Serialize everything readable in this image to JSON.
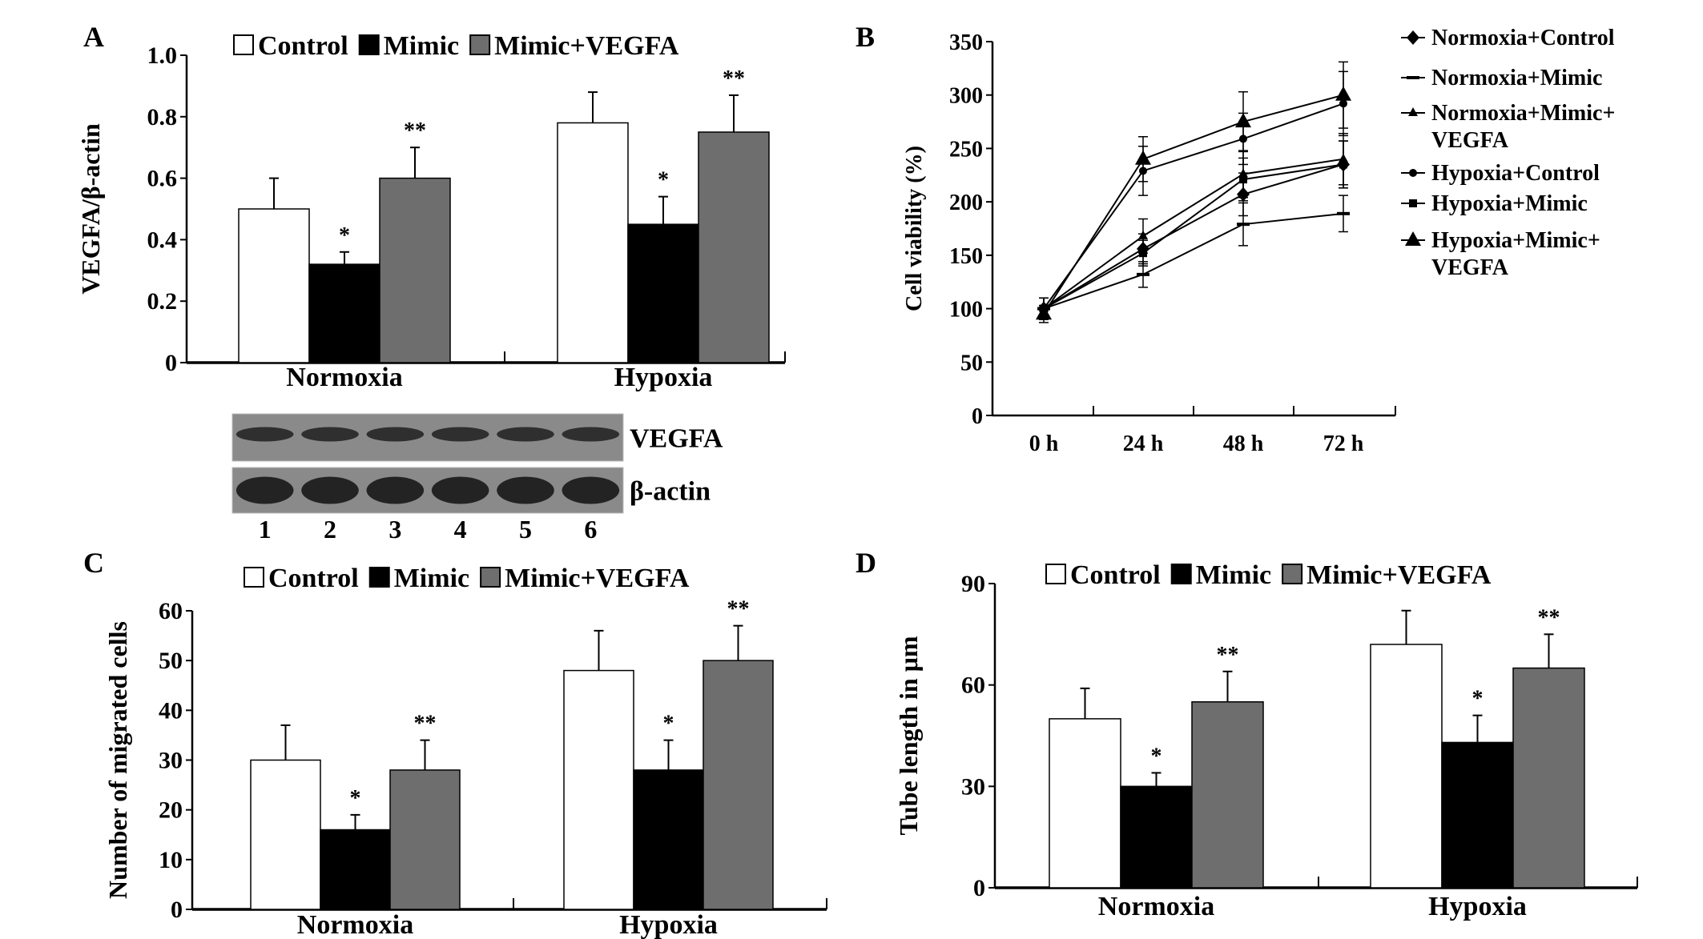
{
  "colors": {
    "control": "#ffffff",
    "mimic": "#000000",
    "mimic_vegfa": "#6e6e6e",
    "blot_bg": "#8a8a8a",
    "blot_band": "#1e1e1e"
  },
  "chart_data": [
    {
      "panel": "A",
      "type": "bar",
      "ylabel": "VEGFA/β-actin",
      "ylim": [
        0,
        1.0
      ],
      "yticks": [
        "0",
        "0.2",
        "0.4",
        "0.6",
        "0.8",
        "1.0"
      ],
      "categories": [
        "Normoxia",
        "Hypoxia"
      ],
      "legend_position": "top",
      "series": [
        {
          "name": "Control",
          "values": [
            0.5,
            0.78
          ],
          "errors": [
            0.1,
            0.1
          ],
          "sig": [
            "",
            ""
          ]
        },
        {
          "name": "Mimic",
          "values": [
            0.32,
            0.45
          ],
          "errors": [
            0.04,
            0.09
          ],
          "sig": [
            "*",
            "*"
          ]
        },
        {
          "name": "Mimic+VEGFA",
          "values": [
            0.6,
            0.75
          ],
          "errors": [
            0.1,
            0.12
          ],
          "sig": [
            "**",
            "**"
          ]
        }
      ],
      "blot": {
        "rows": [
          "VEGFA",
          "β-actin"
        ],
        "lanes": [
          "1",
          "2",
          "3",
          "4",
          "5",
          "6"
        ]
      }
    },
    {
      "panel": "B",
      "type": "line",
      "ylabel": "Cell viability (%)",
      "ylim": [
        0,
        350
      ],
      "yticks": [
        "0",
        "50",
        "100",
        "150",
        "200",
        "250",
        "300",
        "350"
      ],
      "categories": [
        "0 h",
        "24 h",
        "48 h",
        "72 h"
      ],
      "legend_position": "right",
      "series": [
        {
          "name": "Normoxia+Control",
          "marker": "diamond",
          "values": [
            100,
            156,
            207,
            235
          ],
          "errors": [
            10,
            14,
            20,
            22
          ]
        },
        {
          "name": "Normoxia+Mimic",
          "marker": "dash",
          "values": [
            100,
            132,
            179,
            189
          ],
          "errors": [
            10,
            12,
            20,
            17
          ]
        },
        {
          "name": "Normoxia+Mimic+VEGFA",
          "marker": "small-triangle",
          "values": [
            100,
            168,
            226,
            240
          ],
          "errors": [
            10,
            16,
            22,
            24
          ]
        },
        {
          "name": "Hypoxia+Control",
          "marker": "circle",
          "values": [
            100,
            229,
            259,
            292
          ],
          "errors": [
            10,
            23,
            24,
            30
          ]
        },
        {
          "name": "Hypoxia+Mimic",
          "marker": "square",
          "values": [
            100,
            152,
            221,
            235
          ],
          "errors": [
            10,
            12,
            20,
            22
          ]
        },
        {
          "name": "Hypoxia+Mimic+VEGFA",
          "marker": "triangle",
          "values": [
            95,
            240,
            275,
            300
          ],
          "errors": [
            8,
            21,
            28,
            31
          ]
        }
      ]
    },
    {
      "panel": "C",
      "type": "bar",
      "ylabel": "Number of migrated cells",
      "ylim": [
        0,
        60
      ],
      "yticks": [
        "0",
        "10",
        "20",
        "30",
        "40",
        "50",
        "60"
      ],
      "categories": [
        "Normoxia",
        "Hypoxia"
      ],
      "legend_position": "top",
      "series": [
        {
          "name": "Control",
          "values": [
            30,
            48
          ],
          "errors": [
            7,
            8
          ],
          "sig": [
            "",
            ""
          ]
        },
        {
          "name": "Mimic",
          "values": [
            16,
            28
          ],
          "errors": [
            3,
            6
          ],
          "sig": [
            "*",
            "*"
          ]
        },
        {
          "name": "Mimic+VEGFA",
          "values": [
            28,
            50
          ],
          "errors": [
            6,
            7
          ],
          "sig": [
            "**",
            "**"
          ]
        }
      ]
    },
    {
      "panel": "D",
      "type": "bar",
      "ylabel": "Tube length in μm",
      "ylim": [
        0,
        90
      ],
      "yticks": [
        "0",
        "30",
        "60",
        "90"
      ],
      "categories": [
        "Normoxia",
        "Hypoxia"
      ],
      "legend_position": "top",
      "series": [
        {
          "name": "Control",
          "values": [
            50,
            72
          ],
          "errors": [
            9,
            10
          ],
          "sig": [
            "",
            ""
          ]
        },
        {
          "name": "Mimic",
          "values": [
            30,
            43
          ],
          "errors": [
            4,
            8
          ],
          "sig": [
            "*",
            "*"
          ]
        },
        {
          "name": "Mimic+VEGFA",
          "values": [
            55,
            65
          ],
          "errors": [
            9,
            10
          ],
          "sig": [
            "**",
            "**"
          ]
        }
      ]
    }
  ]
}
